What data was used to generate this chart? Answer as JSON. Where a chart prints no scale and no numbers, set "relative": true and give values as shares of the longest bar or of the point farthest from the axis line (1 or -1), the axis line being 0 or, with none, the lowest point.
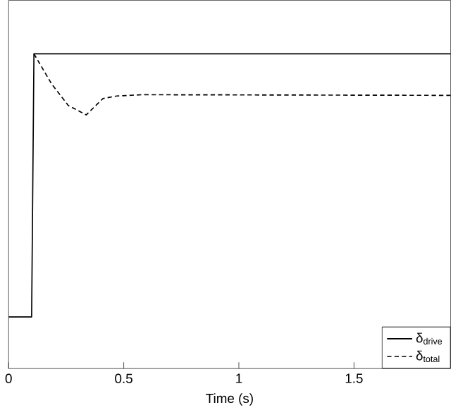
{
  "chart_data": {
    "type": "line",
    "relative": true,
    "xlabel": "Time (s)",
    "xlim": [
      0,
      1.92
    ],
    "xticks": [
      0,
      0.5,
      1,
      1.5
    ],
    "legend": "bottom right",
    "series": [
      {
        "name": "δ$_{drive}$",
        "color": "#000000",
        "line_style": "solid",
        "x": [
          0,
          0.1,
          0.11,
          1.92
        ],
        "values": [
          0.164,
          0.164,
          1,
          1
        ]
      },
      {
        "name": "δ$_{total}$",
        "color": "#000000",
        "line_style": "dashed",
        "x": [
          0.11,
          0.187,
          0.259,
          0.337,
          0.41,
          0.47,
          0.58,
          1.92
        ],
        "values": [
          1,
          0.904,
          0.836,
          0.806,
          0.858,
          0.866,
          0.87,
          0.868
        ]
      }
    ]
  }
}
